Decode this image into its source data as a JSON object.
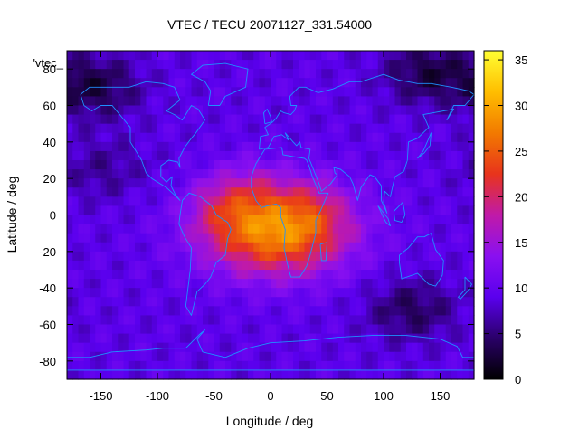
{
  "chart_data": {
    "type": "heatmap",
    "title": "VTEC / TECU 20071127_331.54000",
    "xlabel": "Longitude / deg",
    "ylabel": "Latitude / deg",
    "xlim": [
      -180,
      180
    ],
    "ylim": [
      -90,
      90
    ],
    "xticks": [
      -150,
      -100,
      -50,
      0,
      50,
      100,
      150
    ],
    "yticks": [
      -80,
      -60,
      -40,
      -20,
      0,
      20,
      40,
      60,
      80
    ],
    "colorbar": {
      "range": [
        0,
        36
      ],
      "ticks": [
        0,
        5,
        10,
        15,
        20,
        25,
        30,
        35
      ],
      "palette": [
        "#000000",
        "#2a0068",
        "#5a00ee",
        "#8a10f0",
        "#c01aa8",
        "#e8341c",
        "#f27a00",
        "#ffbe00",
        "#ffff33"
      ]
    },
    "key_label": "'vtec_",
    "grid": false,
    "coastline_color": "#1e90ff",
    "features": {
      "background_level": 9,
      "equatorial_maximum": {
        "lon": 5,
        "lat": -8,
        "value": 29
      },
      "secondary_peaks": [
        {
          "lon": -45,
          "lat": 6,
          "value": 27
        },
        {
          "lon": -15,
          "lat": 15,
          "value": 25
        },
        {
          "lon": 40,
          "lat": 5,
          "value": 24
        }
      ],
      "low_regions": [
        {
          "lon": -155,
          "lat": 70,
          "value": 3
        },
        {
          "lon": 140,
          "lat": 78,
          "value": 3
        },
        {
          "lon": 125,
          "lat": -52,
          "value": 4
        },
        {
          "lon": -150,
          "lat": 25,
          "value": 6
        }
      ]
    }
  }
}
